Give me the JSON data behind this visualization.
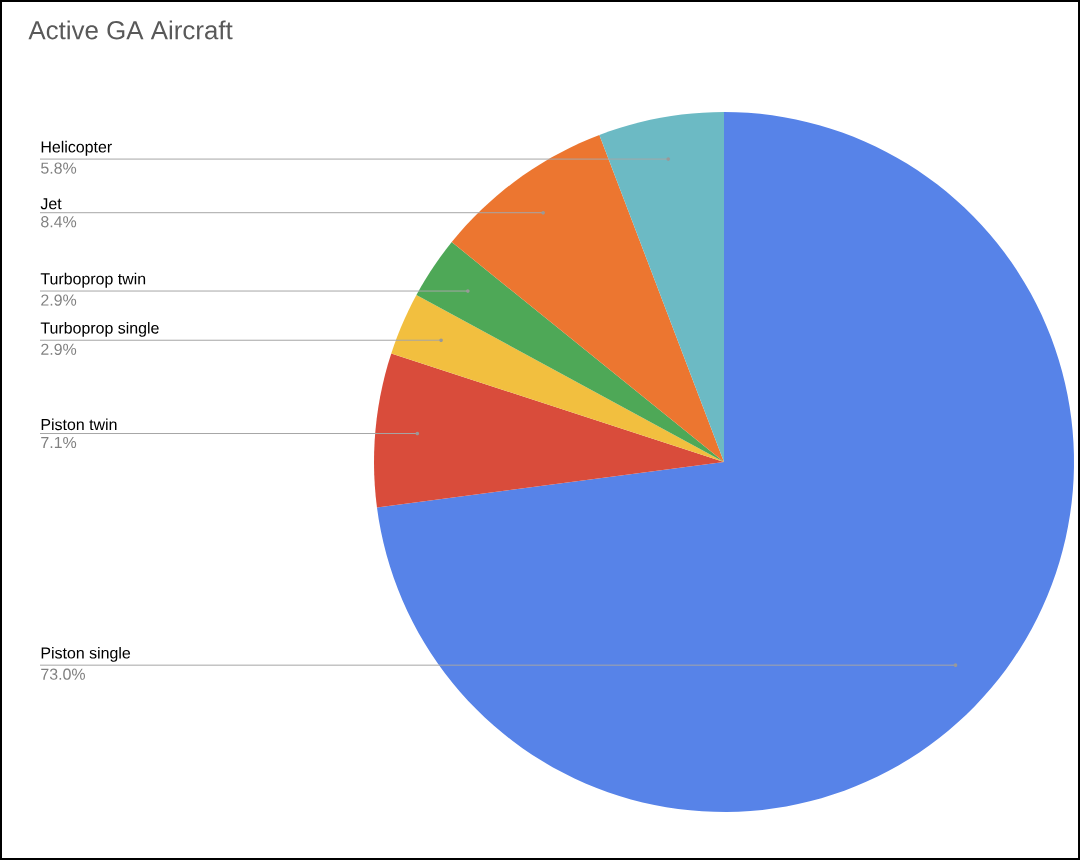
{
  "chart_data": {
    "type": "pie",
    "title": "Active GA Aircraft",
    "categories": [
      "Piston single",
      "Piston twin",
      "Turboprop single",
      "Turboprop twin",
      "Jet",
      "Helicopter"
    ],
    "values": [
      73.0,
      7.1,
      2.9,
      2.9,
      8.4,
      5.8
    ],
    "value_labels": [
      "73.0%",
      "7.1%",
      "2.9%",
      "2.9%",
      "8.4%",
      "5.8%"
    ],
    "colors": [
      "#5783e8",
      "#d94c3b",
      "#f2bf3f",
      "#4ea857",
      "#ec7630",
      "#6cbac4"
    ]
  }
}
